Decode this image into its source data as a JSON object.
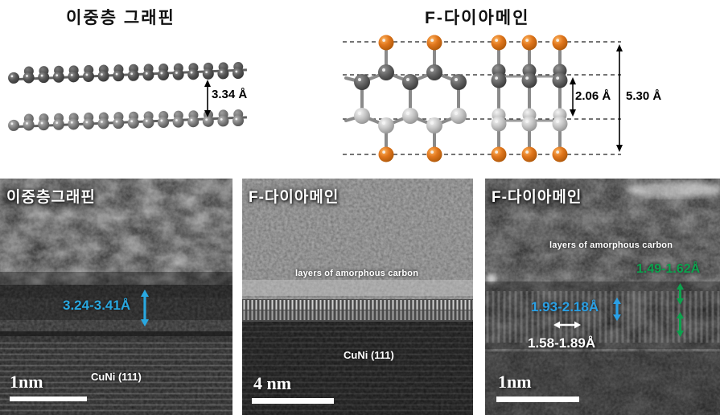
{
  "figure": {
    "top": {
      "graphene": {
        "title": "이중층 그래핀",
        "spacing": "3.34 Å"
      },
      "fdiamane": {
        "title": "F-다이아메인",
        "inner_spacing": "2.06 Å",
        "outer_spacing": "5.30 Å"
      }
    },
    "panels": [
      {
        "label": "이중층그래핀",
        "measurement": "3.24-3.41Å",
        "substrate": "CuNi (111)",
        "scale": "1nm"
      },
      {
        "label": "F-다이아메인",
        "annotation": "layers of amorphous carbon",
        "substrate": "CuNi (111)",
        "scale": "4 nm"
      },
      {
        "label": "F-다이아메인",
        "annotation": "layers of amorphous carbon",
        "measurement_vertical_green": "1.49-1.62Å",
        "measurement_vertical_blue": "1.93-2.18Å",
        "measurement_horizontal_white": "1.58-1.89Å",
        "scale": "1nm"
      }
    ],
    "colors": {
      "cyan_annotation": "#29a8e0",
      "green_annotation": "#0ca24d",
      "white_annotation": "#ffffff",
      "fluorine_orange": "#e0761c",
      "carbon_dark": "#5f5f5f",
      "carbon_light": "#c6c6c6"
    }
  }
}
